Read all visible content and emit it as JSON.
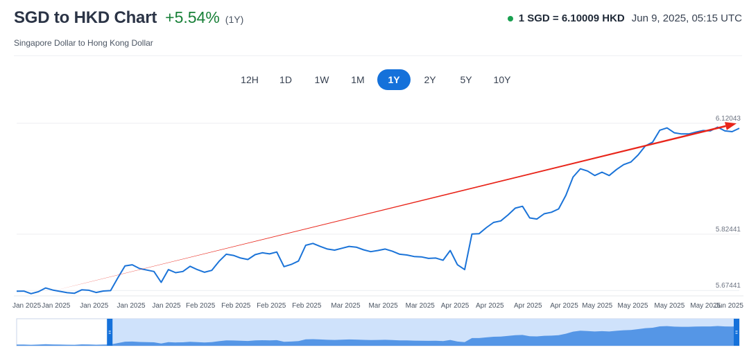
{
  "header": {
    "title": "SGD to HKD Chart",
    "change": "+5.54%",
    "period": "(1Y)",
    "subtitle": "Singapore Dollar to Hong Kong Dollar",
    "rate": "1 SGD = 6.10009 HKD",
    "timestamp": "Jun 9, 2025, 05:15 UTC"
  },
  "tabs": [
    {
      "label": "12H",
      "active": false
    },
    {
      "label": "1D",
      "active": false
    },
    {
      "label": "1W",
      "active": false
    },
    {
      "label": "1M",
      "active": false
    },
    {
      "label": "1Y",
      "active": true
    },
    {
      "label": "2Y",
      "active": false
    },
    {
      "label": "5Y",
      "active": false
    },
    {
      "label": "10Y",
      "active": false
    }
  ],
  "colors": {
    "line": "#1a73d8",
    "trend_arrow": "#e8251a",
    "accent": "#1571da",
    "positive": "#188038",
    "navigator_fill": "#5596e6",
    "navigator_bg": "#cfe2fb",
    "navigator_handle": "#1571da"
  },
  "chart_data": {
    "type": "line",
    "title": "SGD to HKD Chart",
    "xlabel": "",
    "ylabel": "",
    "y_ticks": [
      5.67441,
      5.82441,
      6.12043
    ],
    "y_tick_labels": [
      "5.67441",
      "5.82441",
      "6.12043"
    ],
    "ylim": [
      5.66,
      6.135
    ],
    "grid": true,
    "x_tick_labels": [
      "Jan 2025",
      "Jan 2025",
      "Jan 2025",
      "Jan 2025",
      "Jan 2025",
      "Feb 2025",
      "Feb 2025",
      "Feb 2025",
      "Feb 2025",
      "Mar 2025",
      "Mar 2025",
      "Mar 2025",
      "Apr 2025",
      "Apr 2025",
      "Apr 2025",
      "Apr 2025",
      "May 2025",
      "May 2025",
      "May 2025",
      "May 2025",
      "Jun 2025"
    ],
    "x_tick_positions": [
      0,
      0.0545,
      0.1073,
      0.1584,
      0.2073,
      0.2545,
      0.3035,
      0.3524,
      0.4014,
      0.4553,
      0.5073,
      0.5583,
      0.6066,
      0.6548,
      0.7076,
      0.7577,
      0.8035,
      0.8527,
      0.9034,
      0.9532,
      1
    ],
    "series": [
      {
        "x": [
          0,
          0.01,
          0.02,
          0.03,
          0.04,
          0.05,
          0.06,
          0.07,
          0.08,
          0.09,
          0.1,
          0.11,
          0.12,
          0.13,
          0.14,
          0.15,
          0.16,
          0.17,
          0.18,
          0.19,
          0.2,
          0.21,
          0.22,
          0.23,
          0.24,
          0.25,
          0.26,
          0.27,
          0.28,
          0.29,
          0.3,
          0.31,
          0.32,
          0.33,
          0.34,
          0.35,
          0.36,
          0.37,
          0.38,
          0.39,
          0.4,
          0.41,
          0.42,
          0.43,
          0.44,
          0.45,
          0.46,
          0.47,
          0.48,
          0.49,
          0.5,
          0.51,
          0.52,
          0.53,
          0.54,
          0.55,
          0.56,
          0.57,
          0.58,
          0.59,
          0.6,
          0.61,
          0.62,
          0.63,
          0.64,
          0.65,
          0.66,
          0.67,
          0.68,
          0.69,
          0.7,
          0.71,
          0.72,
          0.73,
          0.74,
          0.75,
          0.76,
          0.77,
          0.78,
          0.79,
          0.8,
          0.81,
          0.82,
          0.83,
          0.84,
          0.85,
          0.86,
          0.87,
          0.88,
          0.89,
          0.9,
          0.91,
          0.92,
          0.93,
          0.94,
          0.95,
          0.96,
          0.97,
          0.98,
          0.99,
          1.0
        ],
        "values": [
          5.6725,
          5.6727,
          5.666,
          5.671,
          5.681,
          5.6755,
          5.672,
          5.6685,
          5.667,
          5.676,
          5.675,
          5.669,
          5.673,
          5.674,
          5.708,
          5.74,
          5.743,
          5.733,
          5.729,
          5.725,
          5.696,
          5.73,
          5.722,
          5.725,
          5.739,
          5.73,
          5.723,
          5.728,
          5.752,
          5.771,
          5.768,
          5.761,
          5.757,
          5.77,
          5.775,
          5.772,
          5.777,
          5.738,
          5.744,
          5.753,
          5.795,
          5.8,
          5.792,
          5.785,
          5.782,
          5.787,
          5.792,
          5.79,
          5.783,
          5.778,
          5.781,
          5.785,
          5.779,
          5.771,
          5.769,
          5.765,
          5.764,
          5.76,
          5.761,
          5.755,
          5.781,
          5.743,
          5.73,
          5.825,
          5.826,
          5.842,
          5.856,
          5.86,
          5.876,
          5.894,
          5.899,
          5.868,
          5.865,
          5.879,
          5.883,
          5.892,
          5.928,
          5.977,
          5.999,
          5.993,
          5.981,
          5.99,
          5.981,
          5.997,
          6.01,
          6.017,
          6.036,
          6.06,
          6.07,
          6.102,
          6.108,
          6.095,
          6.092,
          6.092,
          6.097,
          6.101,
          6.1,
          6.11,
          6.1,
          6.098,
          6.107
        ]
      }
    ],
    "trend": {
      "from": [
        0.05,
        5.6732
      ],
      "to": [
        1.0,
        6.12
      ]
    },
    "navigator": {
      "selection_start": 0.125,
      "selection_end": 1.0
    }
  }
}
